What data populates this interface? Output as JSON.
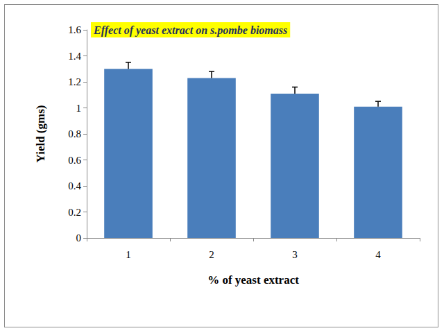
{
  "chart_data": {
    "type": "bar",
    "title": "Effect of yeast extract on s.pombe biomass",
    "x_label": "% of yeast extract",
    "y_label": "Yield (gms)",
    "categories": [
      "1",
      "2",
      "3",
      "4"
    ],
    "values": [
      1.3,
      1.23,
      1.11,
      1.01
    ],
    "errors": [
      0.05,
      0.05,
      0.05,
      0.04
    ],
    "color": "#4a7ebb",
    "ylim": [
      0,
      1.6
    ],
    "yticks": [
      0,
      0.2,
      0.4,
      0.6,
      0.8,
      1,
      1.2,
      1.4,
      1.6
    ],
    "grid": false
  }
}
